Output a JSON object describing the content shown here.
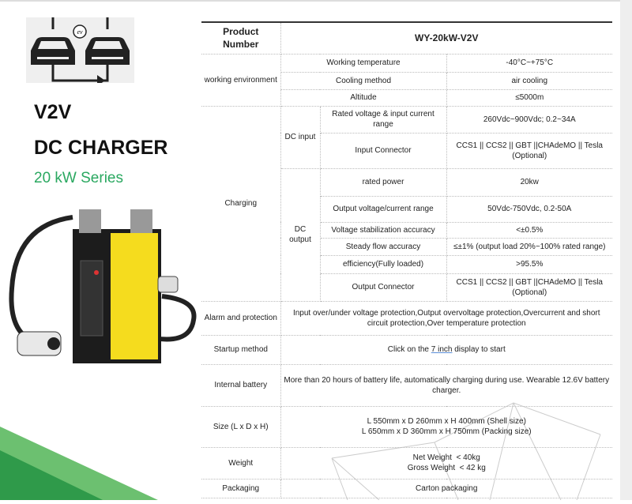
{
  "left": {
    "logo_text": "ev",
    "title_line1": "V2V",
    "title_line2": "DC CHARGER",
    "series": "20 kW Series",
    "accent_color": "#2aa860",
    "charger_color": "#f5dc1e"
  },
  "table": {
    "product_number_label": "Product Number",
    "product_number": "WY-20kW-V2V",
    "working_environment": {
      "label": "working environment",
      "rows": [
        {
          "param": "Working temperature",
          "value": "-40°C~+75°C"
        },
        {
          "param": "Cooling method",
          "value": "air cooling"
        },
        {
          "param": "Altitude",
          "value": "≤5000m"
        }
      ]
    },
    "charging": {
      "label": "Charging",
      "dc_input": {
        "label": "DC input",
        "rows": [
          {
            "param": "Rated voltage & input current range",
            "value": "260Vdc~900Vdc; 0.2~34A"
          },
          {
            "param": "Input Connector",
            "value": "CCS1 || CCS2 || GBT ||CHAdeMO || Tesla (Optional)"
          }
        ]
      },
      "dc_output": {
        "label": "DC output",
        "rows": [
          {
            "param": "rated power",
            "value": "20kw"
          },
          {
            "param": "Output voltage/current range",
            "value": "50Vdc-750Vdc, 0.2-50A"
          },
          {
            "param": "Voltage stabilization accuracy",
            "value": "<±0.5%"
          },
          {
            "param": "Steady flow accuracy",
            "value": "≤±1% (output load 20%~100% rated range)"
          },
          {
            "param": "efficiency(Fully loaded)",
            "value": ">95.5%"
          },
          {
            "param": "Output Connector",
            "value": "CCS1 || CCS2 || GBT ||CHAdeMO || Tesla (Optional)"
          }
        ]
      }
    },
    "alarm": {
      "label": "Alarm and protection",
      "value": "Input over/under voltage protection,Output overvoltage protection,Overcurrent and short circuit protection,Over temperature protection"
    },
    "startup": {
      "label": "Startup method",
      "value_pre": "Click on the ",
      "value_link": "7 inch",
      "value_post": " display to start"
    },
    "battery": {
      "label": "Internal battery",
      "value": "More than 20 hours of battery life, automatically charging during use. Wearable 12.6V battery charger."
    },
    "size": {
      "label": "Size (L x D x H)",
      "line1": "L 550mm x D 260mm x H 400mm (Shell size)",
      "line2": "L 650mm x D 360mm x H 750mm (Packing size)"
    },
    "weight": {
      "label": "Weight",
      "line1": "Net Weight  < 40kg",
      "line2": "Gross Weight  < 42 kg"
    },
    "packaging": {
      "label": "Packaging",
      "value": "Carton packaging"
    }
  }
}
